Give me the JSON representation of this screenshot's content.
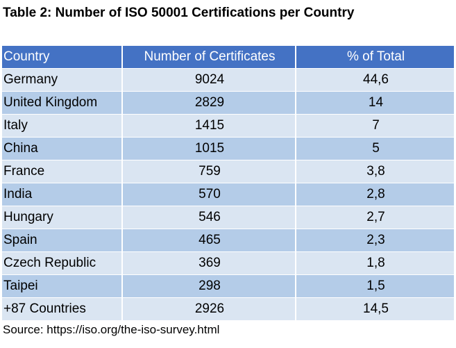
{
  "title": "Table 2: Number of ISO 50001 Certifications per Country",
  "table": {
    "headers": [
      "Country",
      "Number of Certificates",
      "% of Total"
    ],
    "rows": [
      [
        "Germany",
        "9024",
        "44,6"
      ],
      [
        "United Kingdom",
        "2829",
        "14"
      ],
      [
        "Italy",
        "1415",
        "7"
      ],
      [
        "China",
        "1015",
        "5"
      ],
      [
        "France",
        "759",
        "3,8"
      ],
      [
        "India",
        "570",
        "2,8"
      ],
      [
        "Hungary",
        "546",
        "2,7"
      ],
      [
        "Spain",
        "465",
        "2,3"
      ],
      [
        "Czech Republic",
        "369",
        "1,8"
      ],
      [
        "Taipei",
        "298",
        "1,5"
      ],
      [
        "+87 Countries",
        "2926",
        "14,5"
      ]
    ]
  },
  "source": "Source: https://iso.org/the-iso-survey.html",
  "colors": {
    "header_bg": "#4472c4",
    "row_light": "#dae5f2",
    "row_dark": "#b4cce8"
  }
}
